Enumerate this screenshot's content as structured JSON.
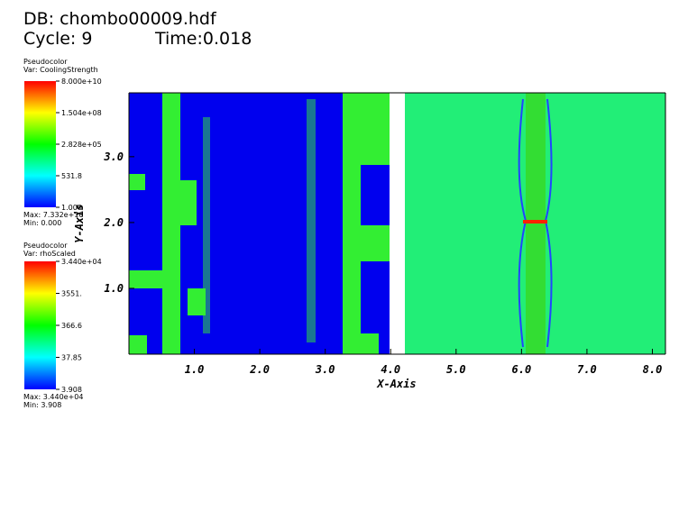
{
  "header": {
    "db": "DB: chombo00009.hdf",
    "cycle": "Cycle: 9",
    "time": "Time:0.018"
  },
  "legends": [
    {
      "plot": "Pseudocolor",
      "var": "Var: CoolingStrength",
      "labels": [
        "8.000e+10",
        "1.504e+08",
        "2.828e+05",
        "531.8",
        "1.000"
      ],
      "max": "Max: 7.332e+10",
      "min": "Min: 0.000"
    },
    {
      "plot": "Pseudocolor",
      "var": "Var: rhoScaled",
      "labels": [
        "3.440e+04",
        "3551.",
        "366.6",
        "37.85",
        "3.908"
      ],
      "max": "Max: 3.440e+04",
      "min": "Min: 3.908"
    }
  ],
  "axes": {
    "x_title": "X-Axis",
    "y_title": "Y-Axis",
    "xlim": [
      0,
      8.2
    ],
    "ylim": [
      0,
      3.97
    ],
    "xticks": [
      {
        "value": 1,
        "label": "1.0"
      },
      {
        "value": 2,
        "label": "2.0"
      },
      {
        "value": 3,
        "label": "3.0"
      },
      {
        "value": 4,
        "label": "4.0"
      },
      {
        "value": 5,
        "label": "5.0"
      },
      {
        "value": 6,
        "label": "6.0"
      },
      {
        "value": 7,
        "label": "7.0"
      },
      {
        "value": 8,
        "label": "8.0"
      }
    ],
    "yticks": [
      {
        "value": 1,
        "label": "1.0"
      },
      {
        "value": 2,
        "label": "2.0"
      },
      {
        "value": 3,
        "label": "3.0"
      }
    ]
  }
}
